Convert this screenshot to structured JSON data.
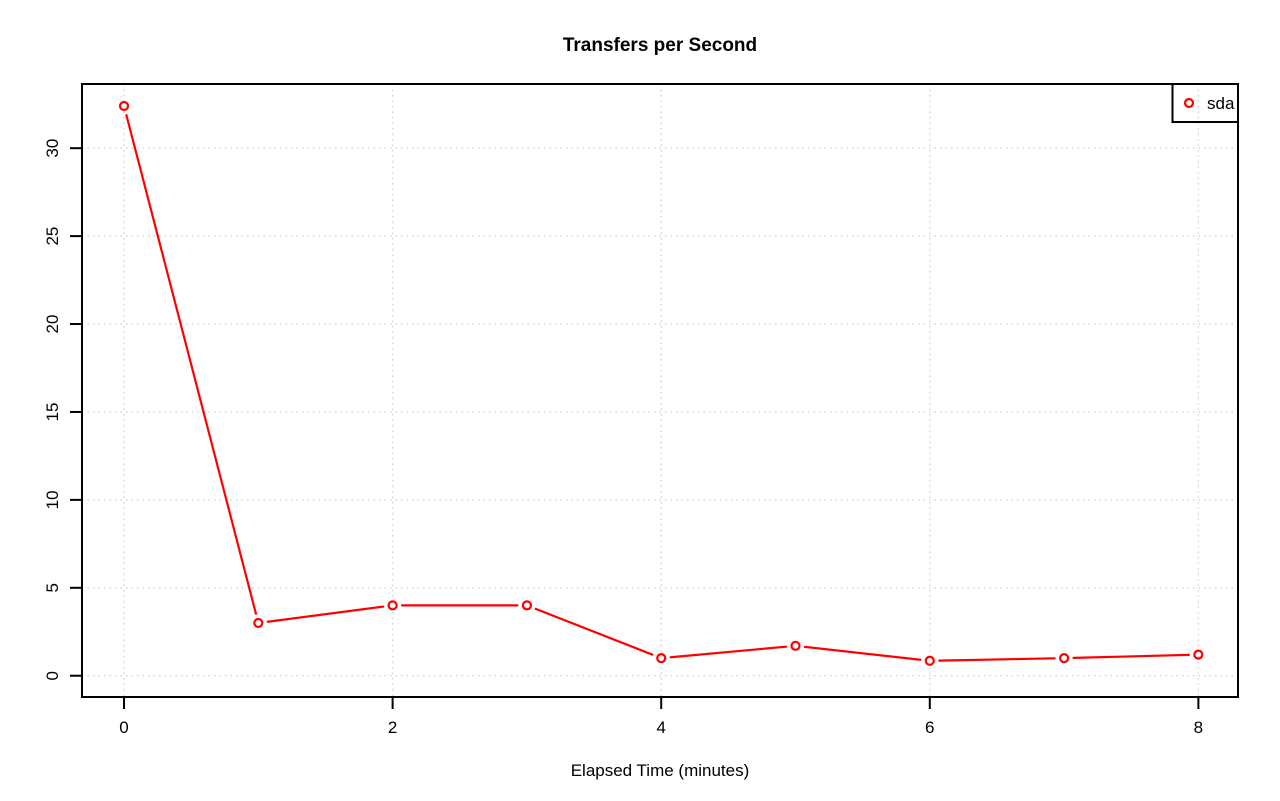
{
  "chart_data": {
    "type": "line",
    "title": "Transfers per Second",
    "xlabel": "Elapsed Time (minutes)",
    "ylabel": "",
    "x": [
      0,
      1,
      2,
      3,
      4,
      5,
      6,
      7,
      8
    ],
    "series": [
      {
        "name": "sda",
        "color": "#ff0000",
        "marker": "open-circle",
        "line_style": "solid-with-point-gaps",
        "values": [
          32.4,
          3.0,
          4.0,
          4.0,
          1.0,
          1.7,
          0.85,
          1.0,
          1.2
        ]
      }
    ],
    "xticks": [
      0,
      2,
      4,
      6,
      8
    ],
    "yticks": [
      0,
      5,
      10,
      15,
      20,
      25,
      30
    ],
    "xlim": [
      -0.313,
      8.295
    ],
    "ylim": [
      -1.21,
      33.65
    ],
    "grid": {
      "visible": true,
      "style": "dotted",
      "color": "#d3d3d3"
    },
    "legend": {
      "position": "topright",
      "entries": [
        "sda"
      ]
    },
    "axis_color": "#000000",
    "text_color": "#000000",
    "background_color": "#ffffff"
  }
}
